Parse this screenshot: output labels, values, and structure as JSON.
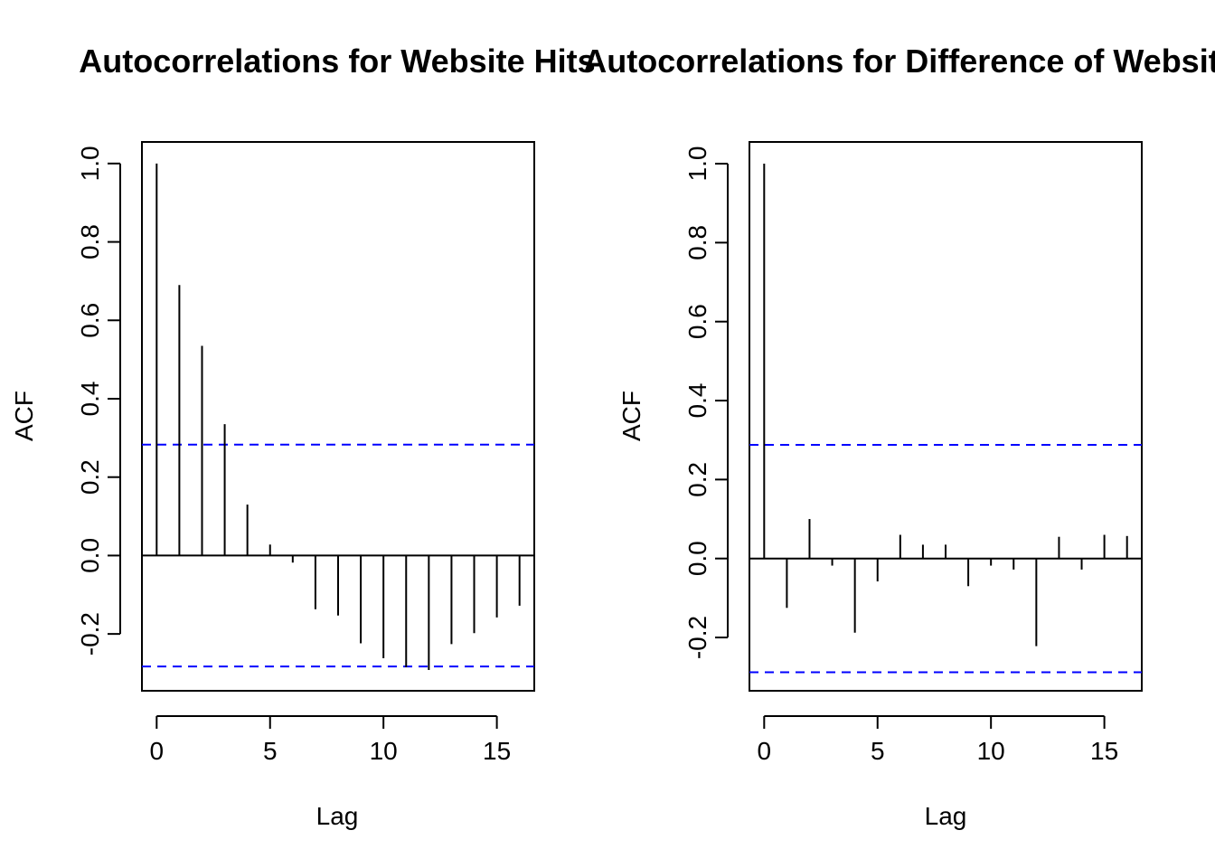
{
  "chart_data": [
    {
      "type": "bar",
      "title": "Autocorrelations for Website Hits",
      "xlabel": "Lag",
      "ylabel": "ACF",
      "xlim": [
        -0.65,
        16.65
      ],
      "ylim": [
        -0.345,
        1.055
      ],
      "x_ticks": [
        "0",
        "5",
        "10",
        "15"
      ],
      "y_ticks": [
        "-0.2",
        "0.0",
        "0.2",
        "0.4",
        "0.6",
        "0.8",
        "1.0"
      ],
      "lags": [
        0,
        1,
        2,
        3,
        4,
        5,
        6,
        7,
        8,
        9,
        10,
        11,
        12,
        13,
        14,
        15,
        16
      ],
      "values": [
        1.0,
        0.69,
        0.535,
        0.335,
        0.13,
        0.028,
        -0.018,
        -0.137,
        -0.153,
        -0.224,
        -0.262,
        -0.285,
        -0.292,
        -0.226,
        -0.198,
        -0.158,
        -0.128
      ],
      "confidence_bound": 0.283,
      "confidence_color": "#0000ff"
    },
    {
      "type": "bar",
      "title": "Autocorrelations for Difference of Website Hits",
      "xlabel": "Lag",
      "ylabel": "ACF",
      "xlim": [
        -0.65,
        16.65
      ],
      "ylim": [
        -0.335,
        1.055
      ],
      "x_ticks": [
        "0",
        "5",
        "10",
        "15"
      ],
      "y_ticks": [
        "-0.2",
        "0.0",
        "0.2",
        "0.4",
        "0.6",
        "0.8",
        "1.0"
      ],
      "lags": [
        0,
        1,
        2,
        3,
        4,
        5,
        6,
        7,
        8,
        9,
        10,
        11,
        12,
        13,
        14,
        15,
        16
      ],
      "values": [
        1.0,
        -0.125,
        0.1,
        -0.018,
        -0.188,
        -0.058,
        0.06,
        0.035,
        0.035,
        -0.07,
        -0.018,
        -0.028,
        -0.222,
        0.055,
        -0.028,
        0.06,
        0.057
      ],
      "confidence_bound": 0.288,
      "confidence_color": "#0000ff"
    }
  ]
}
